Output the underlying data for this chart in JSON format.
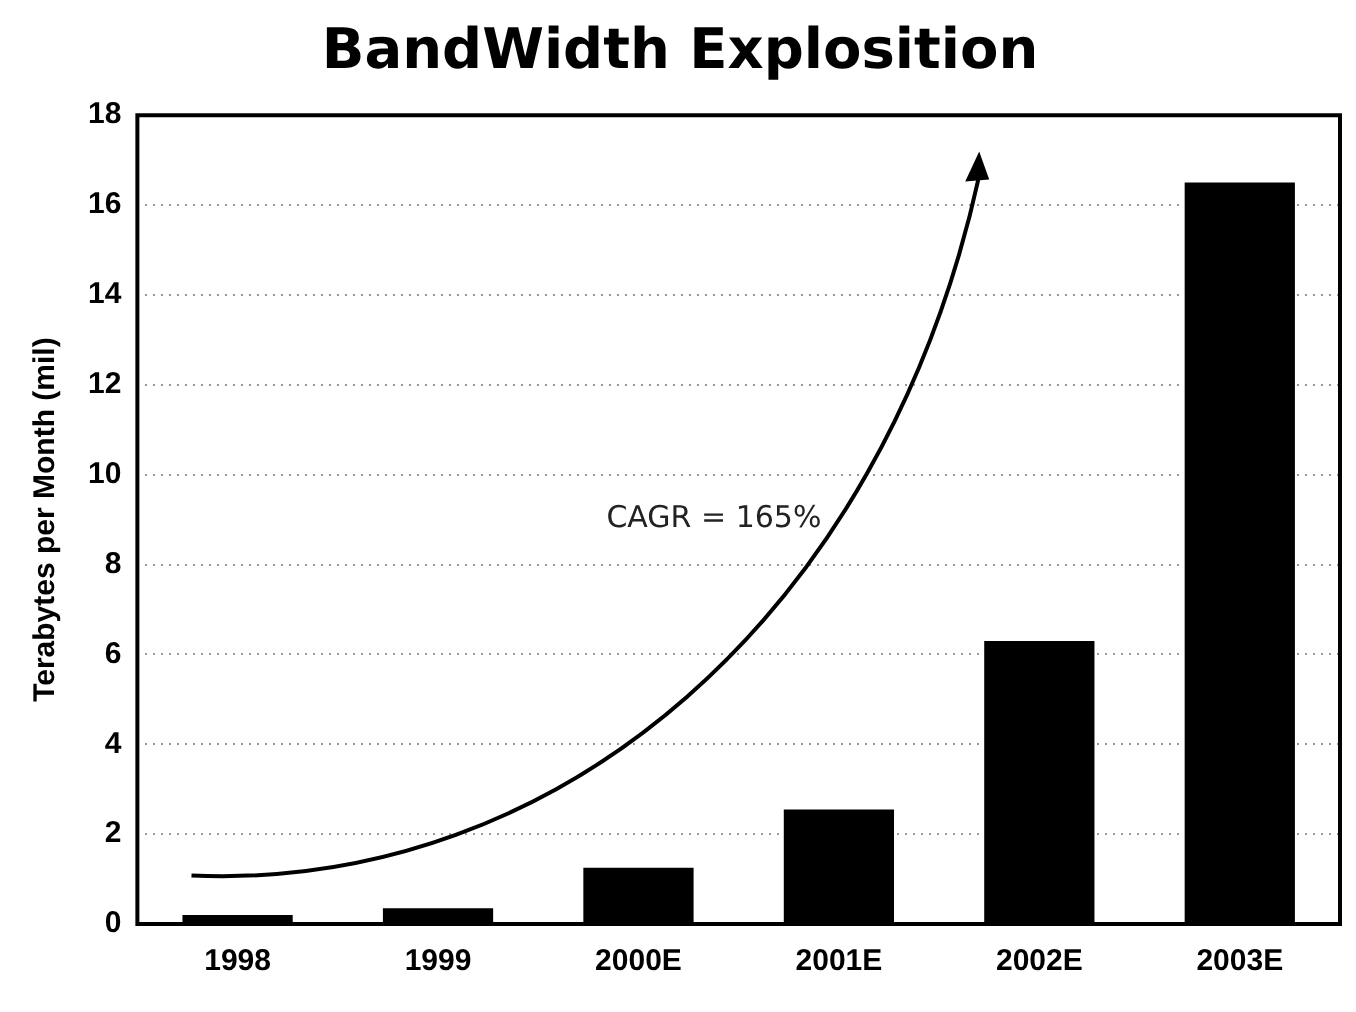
{
  "chart_data": {
    "type": "bar",
    "title": "BandWidth Explosition",
    "ylabel": "Terabytes per Month (mil)",
    "categories": [
      "1998",
      "1999",
      "2000E",
      "2001E",
      "2002E",
      "2003E"
    ],
    "values": [
      0.2,
      0.35,
      1.25,
      2.55,
      6.3,
      16.5
    ],
    "color": "#000000",
    "ylim": [
      0,
      18
    ],
    "yticks": [
      0,
      2,
      4,
      6,
      8,
      10,
      12,
      14,
      16,
      18
    ],
    "grid": "y",
    "legend": false,
    "annotations": [
      "CAGR = 165%"
    ]
  }
}
